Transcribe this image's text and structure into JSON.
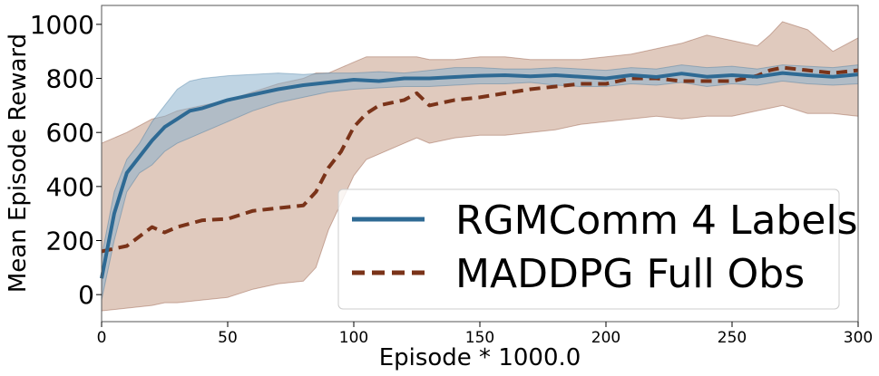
{
  "chart_data": {
    "type": "line",
    "title": "",
    "xlabel": "Episode * 1000.0",
    "ylabel": "Mean Episode Reward",
    "xlim": [
      0,
      300
    ],
    "ylim": [
      -100,
      1070
    ],
    "xticks": [
      0,
      50,
      100,
      150,
      200,
      250,
      300
    ],
    "yticks": [
      0,
      200,
      400,
      600,
      800,
      1000
    ],
    "legend_position": "bottom-right",
    "grid": false,
    "series": [
      {
        "name": "RGMComm 4 Labels",
        "color": "#2e6a94",
        "band_color": "#8ab0cc",
        "line_style": "solid",
        "x": [
          0,
          5,
          10,
          15,
          20,
          25,
          30,
          35,
          40,
          50,
          60,
          70,
          80,
          90,
          100,
          110,
          120,
          130,
          140,
          150,
          160,
          170,
          180,
          190,
          200,
          210,
          220,
          230,
          240,
          250,
          260,
          270,
          280,
          290,
          300
        ],
        "y": [
          60,
          300,
          450,
          510,
          570,
          620,
          650,
          680,
          690,
          720,
          740,
          760,
          775,
          785,
          795,
          790,
          800,
          800,
          805,
          810,
          812,
          808,
          812,
          806,
          800,
          812,
          805,
          818,
          806,
          812,
          806,
          820,
          812,
          806,
          815
        ],
        "upper": [
          140,
          380,
          500,
          560,
          640,
          700,
          760,
          790,
          800,
          810,
          815,
          820,
          815,
          820,
          820,
          825,
          820,
          830,
          840,
          840,
          835,
          835,
          840,
          835,
          830,
          840,
          835,
          850,
          840,
          845,
          835,
          850,
          845,
          840,
          850
        ],
        "lower": [
          -20,
          200,
          380,
          450,
          480,
          530,
          560,
          580,
          600,
          640,
          680,
          710,
          730,
          750,
          760,
          765,
          770,
          770,
          775,
          780,
          780,
          785,
          775,
          770,
          770,
          780,
          775,
          785,
          770,
          780,
          775,
          790,
          780,
          775,
          780
        ]
      },
      {
        "name": "MADDPG Full Obs",
        "color": "#7a3319",
        "band_color": "#d3b4a3",
        "line_style": "dashed",
        "x": [
          0,
          10,
          20,
          25,
          30,
          40,
          50,
          60,
          70,
          80,
          85,
          90,
          95,
          100,
          105,
          110,
          120,
          125,
          130,
          140,
          150,
          160,
          170,
          180,
          190,
          200,
          210,
          220,
          230,
          240,
          250,
          260,
          265,
          270,
          280,
          290,
          300
        ],
        "y": [
          160,
          180,
          250,
          230,
          250,
          275,
          280,
          310,
          320,
          330,
          380,
          470,
          530,
          620,
          670,
          700,
          720,
          745,
          700,
          720,
          730,
          745,
          760,
          770,
          780,
          780,
          800,
          800,
          790,
          790,
          790,
          810,
          830,
          840,
          830,
          820,
          830
        ],
        "upper": [
          560,
          600,
          650,
          660,
          680,
          700,
          720,
          750,
          780,
          800,
          820,
          820,
          840,
          860,
          880,
          880,
          880,
          880,
          870,
          870,
          880,
          880,
          870,
          870,
          870,
          880,
          890,
          910,
          930,
          960,
          940,
          920,
          960,
          1010,
          980,
          900,
          950
        ],
        "lower": [
          -60,
          -50,
          -40,
          -30,
          -30,
          -20,
          -10,
          20,
          40,
          50,
          100,
          240,
          340,
          440,
          500,
          520,
          560,
          580,
          560,
          580,
          590,
          590,
          600,
          610,
          630,
          640,
          650,
          660,
          650,
          660,
          660,
          680,
          690,
          700,
          670,
          670,
          660
        ]
      }
    ]
  }
}
